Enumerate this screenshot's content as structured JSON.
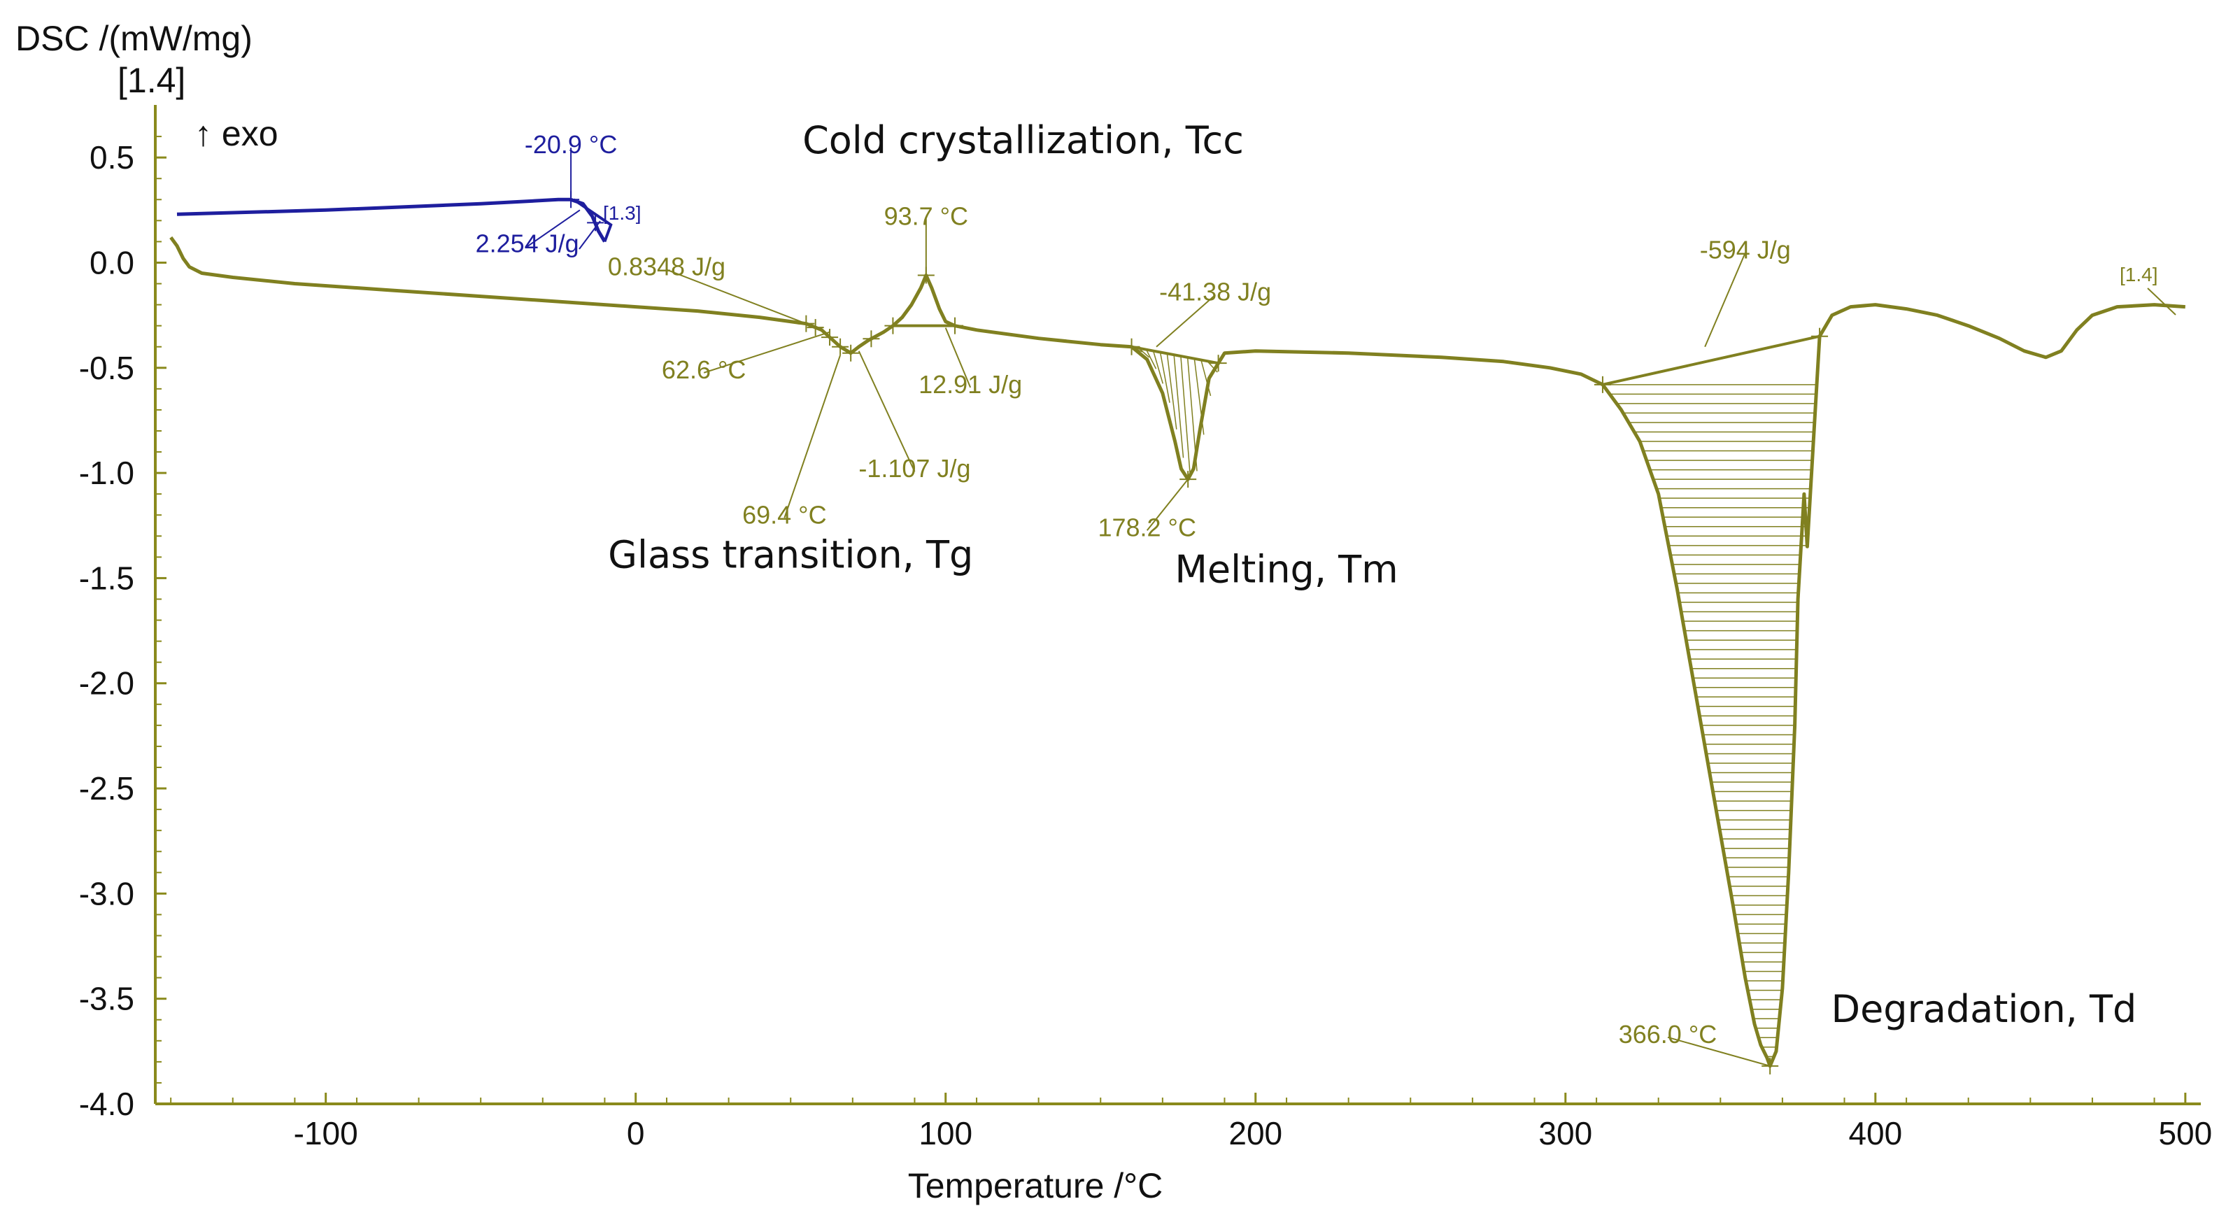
{
  "chart_data": {
    "type": "line",
    "ylabel": "DSC /(mW/mg)",
    "ylabel_tag": "[1.4]",
    "exo_label": "↑ exo",
    "xlabel": "Temperature /°C",
    "xlim": [
      -155,
      505
    ],
    "ylim": [
      -4.0,
      0.75
    ],
    "x_ticks": [
      -100,
      0,
      100,
      200,
      300,
      400,
      500
    ],
    "y_ticks": [
      0.5,
      0.0,
      -0.5,
      -1.0,
      -1.5,
      -2.0,
      -2.5,
      -3.0,
      -3.5,
      -4.0
    ],
    "x_tick_labels": [
      "-100",
      "0",
      "100",
      "200",
      "300",
      "400",
      "500"
    ],
    "y_tick_labels": [
      "0.5",
      "0.0",
      "-0.5",
      "-1.0",
      "-1.5",
      "-2.0",
      "-2.5",
      "-3.0",
      "-3.5",
      "-4.0"
    ],
    "colors": {
      "olive": "#808020",
      "blue": "#1e1e9e",
      "axis": "#8a8a1c",
      "text": "#111111"
    },
    "series": [
      {
        "name": "[1.3]",
        "tag": "[1.3]",
        "color": "#1e1e9e",
        "x": [
          -148,
          -100,
          -50,
          -25,
          -21,
          -17,
          -14,
          -12,
          -10
        ],
        "y": [
          0.23,
          0.25,
          0.28,
          0.3,
          0.3,
          0.28,
          0.22,
          0.15,
          0.1
        ]
      },
      {
        "name": "[1.4]",
        "tag": "[1.4]",
        "color": "#808020",
        "x": [
          -150,
          -148,
          -146,
          -144,
          -140,
          -130,
          -110,
          -80,
          -50,
          -20,
          0,
          20,
          40,
          55,
          60,
          63,
          66,
          69.4,
          72,
          75,
          80,
          83,
          86,
          89,
          92,
          93.7,
          95.5,
          98,
          100,
          103,
          110,
          130,
          150,
          160,
          165,
          170,
          174,
          176,
          178.2,
          180,
          182,
          185,
          190,
          200,
          230,
          260,
          280,
          295,
          305,
          312,
          318,
          324,
          330,
          336,
          342,
          348,
          354,
          358,
          361,
          363,
          365,
          366,
          368,
          370,
          372,
          374,
          375,
          377,
          378,
          380,
          382,
          386,
          392,
          400,
          410,
          420,
          430,
          440,
          448,
          455,
          460,
          465,
          470,
          478,
          490,
          500
        ],
        "y": [
          0.12,
          0.08,
          0.02,
          -0.02,
          -0.05,
          -0.07,
          -0.1,
          -0.13,
          -0.16,
          -0.19,
          -0.21,
          -0.23,
          -0.26,
          -0.29,
          -0.32,
          -0.36,
          -0.4,
          -0.43,
          -0.4,
          -0.37,
          -0.33,
          -0.3,
          -0.26,
          -0.2,
          -0.12,
          -0.06,
          -0.12,
          -0.22,
          -0.28,
          -0.3,
          -0.32,
          -0.36,
          -0.39,
          -0.4,
          -0.46,
          -0.62,
          -0.85,
          -0.98,
          -1.03,
          -0.98,
          -0.8,
          -0.55,
          -0.43,
          -0.42,
          -0.43,
          -0.45,
          -0.47,
          -0.5,
          -0.53,
          -0.58,
          -0.7,
          -0.85,
          -1.1,
          -1.55,
          -2.05,
          -2.55,
          -3.05,
          -3.4,
          -3.62,
          -3.72,
          -3.78,
          -3.82,
          -3.75,
          -3.45,
          -2.9,
          -2.2,
          -1.6,
          -1.1,
          -1.35,
          -0.85,
          -0.35,
          -0.25,
          -0.21,
          -0.2,
          -0.22,
          -0.25,
          -0.3,
          -0.36,
          -0.42,
          -0.45,
          -0.42,
          -0.32,
          -0.25,
          -0.21,
          -0.2,
          -0.21
        ]
      }
    ],
    "annotations": [
      {
        "text": "-20.9 °C",
        "x": -20.9,
        "y": 0.31,
        "series": "[1.3]",
        "color": "#1e1e9e"
      },
      {
        "text": "2.254 J/g",
        "x": -35,
        "y": 0.06,
        "series": "[1.3]",
        "color": "#1e1e9e"
      },
      {
        "text": "93.7 °C",
        "x": 93.7,
        "y": -0.06,
        "series": "[1.4]",
        "color": "#808020"
      },
      {
        "text": "0.8348 J/g",
        "x": 40,
        "y": -0.08,
        "series": "[1.4]",
        "color": "#808020"
      },
      {
        "text": "62.6 °C",
        "x": 62.6,
        "y": -0.35,
        "series": "[1.4]",
        "color": "#808020"
      },
      {
        "text": "12.91 J/g",
        "x": 90,
        "y": -0.58,
        "series": "[1.4]",
        "color": "#808020"
      },
      {
        "text": "-1.107 J/g",
        "x": 70,
        "y": -1.0,
        "series": "[1.4]",
        "color": "#808020"
      },
      {
        "text": "69.4 °C",
        "x": 69.4,
        "y": -0.43,
        "series": "[1.4]",
        "color": "#808020"
      },
      {
        "text": "-41.38 J/g",
        "x": 185,
        "y": -0.15,
        "series": "[1.4]",
        "color": "#808020"
      },
      {
        "text": "178.2 °C",
        "x": 178.2,
        "y": -1.03,
        "series": "[1.4]",
        "color": "#808020"
      },
      {
        "text": "-594 J/g",
        "x": 360,
        "y": 0.0,
        "series": "[1.4]",
        "color": "#808020"
      },
      {
        "text": "366.0 °C",
        "x": 366.0,
        "y": -3.82,
        "series": "[1.4]",
        "color": "#808020"
      }
    ],
    "regions": [
      {
        "label": "Cold crystallization, Tcc",
        "x": 125,
        "y": 0.52
      },
      {
        "label": "Glass transition, Tg",
        "x": 50,
        "y": -1.45
      },
      {
        "label": "Melting, Tm",
        "x": 210,
        "y": -1.52
      },
      {
        "label": "Degradation, Td",
        "x": 435,
        "y": -3.61
      }
    ]
  }
}
